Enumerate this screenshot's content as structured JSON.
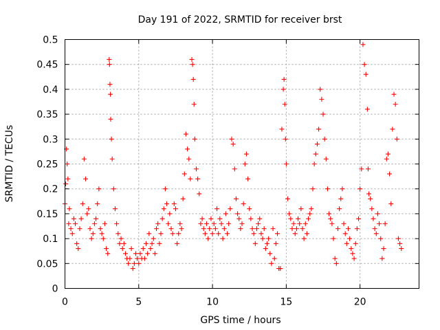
{
  "chart_data": {
    "type": "scatter",
    "title": "Day 191 of 2022, SRMTID for receiver brst",
    "xlabel": "GPS time / hours",
    "ylabel": "SRMTID / TECUs",
    "xlim": [
      0,
      24
    ],
    "ylim": [
      0,
      0.5
    ],
    "xticks": [
      0,
      5,
      10,
      15,
      20
    ],
    "xtick_labels": [
      "0",
      "5",
      "10",
      "15",
      "20"
    ],
    "yticks": [
      0,
      0.05,
      0.1,
      0.15,
      0.2,
      0.25,
      0.3,
      0.35,
      0.4,
      0.45,
      0.5
    ],
    "ytick_labels": [
      "0",
      "0.05",
      "0.1",
      "0.15",
      "0.2",
      "0.25",
      "0.3",
      "0.35",
      "0.4",
      "0.45",
      "0.5"
    ],
    "grid": true,
    "legend": "none",
    "marker": "plus",
    "color": "#ff0000",
    "series": [
      {
        "name": "SRMTID",
        "x": [
          0.0,
          0.05,
          0.1,
          0.15,
          0.2,
          0.25,
          0.3,
          0.4,
          0.5,
          0.6,
          0.7,
          0.8,
          0.9,
          1.0,
          1.1,
          1.2,
          1.3,
          1.4,
          1.5,
          1.6,
          1.7,
          1.8,
          1.9,
          2.0,
          2.1,
          2.2,
          2.3,
          2.4,
          2.5,
          2.6,
          2.7,
          2.8,
          2.9,
          3.0,
          3.02,
          3.05,
          3.08,
          3.1,
          3.15,
          3.2,
          3.3,
          3.4,
          3.5,
          3.6,
          3.7,
          3.8,
          3.9,
          4.0,
          4.1,
          4.2,
          4.3,
          4.4,
          4.5,
          4.6,
          4.7,
          4.8,
          4.9,
          5.0,
          5.1,
          5.2,
          5.3,
          5.4,
          5.5,
          5.6,
          5.7,
          5.8,
          5.9,
          6.0,
          6.1,
          6.2,
          6.3,
          6.4,
          6.5,
          6.6,
          6.7,
          6.8,
          6.9,
          7.0,
          7.1,
          7.2,
          7.3,
          7.4,
          7.5,
          7.6,
          7.7,
          7.8,
          7.9,
          8.0,
          8.1,
          8.2,
          8.3,
          8.4,
          8.5,
          8.6,
          8.65,
          8.7,
          8.75,
          8.8,
          8.9,
          9.0,
          9.1,
          9.2,
          9.3,
          9.4,
          9.5,
          9.6,
          9.7,
          9.8,
          9.9,
          10.0,
          10.1,
          10.2,
          10.3,
          10.4,
          10.5,
          10.6,
          10.7,
          10.8,
          10.9,
          11.0,
          11.1,
          11.2,
          11.3,
          11.4,
          11.5,
          11.6,
          11.7,
          11.8,
          11.9,
          12.0,
          12.1,
          12.2,
          12.3,
          12.4,
          12.5,
          12.6,
          12.7,
          12.8,
          12.9,
          13.0,
          13.1,
          13.2,
          13.3,
          13.4,
          13.5,
          13.6,
          13.7,
          13.8,
          13.9,
          14.0,
          14.1,
          14.2,
          14.3,
          14.4,
          14.5,
          14.6,
          14.7,
          14.8,
          14.85,
          14.9,
          14.95,
          15.0,
          15.1,
          15.2,
          15.3,
          15.4,
          15.5,
          15.6,
          15.7,
          15.8,
          15.9,
          16.0,
          16.1,
          16.2,
          16.3,
          16.4,
          16.5,
          16.6,
          16.7,
          16.8,
          16.9,
          17.0,
          17.1,
          17.2,
          17.3,
          17.4,
          17.5,
          17.6,
          17.7,
          17.8,
          17.9,
          18.0,
          18.1,
          18.2,
          18.3,
          18.4,
          18.5,
          18.6,
          18.7,
          18.8,
          18.9,
          19.0,
          19.1,
          19.2,
          19.3,
          19.4,
          19.5,
          19.6,
          19.7,
          19.8,
          19.9,
          20.0,
          20.1,
          20.2,
          20.3,
          20.4,
          20.5,
          20.55,
          20.6,
          20.7,
          20.8,
          20.9,
          21.0,
          21.1,
          21.2,
          21.3,
          21.4,
          21.5,
          21.6,
          21.7,
          21.8,
          21.9,
          22.0,
          22.1,
          22.2,
          22.3,
          22.4,
          22.5,
          22.6,
          22.7,
          22.8
        ],
        "y": [
          0.17,
          0.21,
          0.28,
          0.25,
          0.22,
          0.13,
          0.16,
          0.12,
          0.11,
          0.14,
          0.13,
          0.09,
          0.08,
          0.12,
          0.14,
          0.17,
          0.26,
          0.22,
          0.15,
          0.16,
          0.12,
          0.1,
          0.11,
          0.13,
          0.14,
          0.17,
          0.2,
          0.12,
          0.11,
          0.1,
          0.13,
          0.08,
          0.07,
          0.46,
          0.45,
          0.41,
          0.39,
          0.34,
          0.3,
          0.26,
          0.2,
          0.16,
          0.13,
          0.11,
          0.09,
          0.1,
          0.08,
          0.09,
          0.07,
          0.06,
          0.05,
          0.06,
          0.08,
          0.04,
          0.05,
          0.07,
          0.06,
          0.05,
          0.07,
          0.06,
          0.08,
          0.06,
          0.09,
          0.07,
          0.11,
          0.08,
          0.09,
          0.1,
          0.07,
          0.12,
          0.13,
          0.09,
          0.11,
          0.14,
          0.16,
          0.2,
          0.17,
          0.13,
          0.15,
          0.12,
          0.11,
          0.17,
          0.16,
          0.09,
          0.11,
          0.13,
          0.12,
          0.18,
          0.23,
          0.31,
          0.28,
          0.26,
          0.22,
          0.46,
          0.45,
          0.42,
          0.37,
          0.3,
          0.24,
          0.22,
          0.19,
          0.13,
          0.14,
          0.12,
          0.11,
          0.13,
          0.1,
          0.12,
          0.14,
          0.11,
          0.13,
          0.12,
          0.16,
          0.11,
          0.14,
          0.13,
          0.1,
          0.12,
          0.15,
          0.11,
          0.13,
          0.16,
          0.3,
          0.29,
          0.24,
          0.18,
          0.15,
          0.14,
          0.12,
          0.13,
          0.17,
          0.25,
          0.27,
          0.22,
          0.16,
          0.14,
          0.12,
          0.11,
          0.09,
          0.12,
          0.13,
          0.14,
          0.11,
          0.1,
          0.12,
          0.08,
          0.09,
          0.1,
          0.07,
          0.05,
          0.12,
          0.06,
          0.09,
          0.11,
          0.04,
          0.04,
          0.32,
          0.4,
          0.42,
          0.37,
          0.3,
          0.25,
          0.18,
          0.15,
          0.14,
          0.12,
          0.13,
          0.11,
          0.12,
          0.14,
          0.13,
          0.16,
          0.12,
          0.1,
          0.13,
          0.11,
          0.14,
          0.15,
          0.16,
          0.2,
          0.25,
          0.27,
          0.29,
          0.32,
          0.4,
          0.38,
          0.35,
          0.3,
          0.26,
          0.2,
          0.15,
          0.14,
          0.13,
          0.1,
          0.06,
          0.05,
          0.12,
          0.16,
          0.18,
          0.2,
          0.13,
          0.11,
          0.09,
          0.12,
          0.1,
          0.08,
          0.07,
          0.06,
          0.09,
          0.12,
          0.14,
          0.2,
          0.24,
          0.49,
          0.45,
          0.43,
          0.36,
          0.24,
          0.19,
          0.18,
          0.16,
          0.14,
          0.12,
          0.11,
          0.15,
          0.13,
          0.1,
          0.06,
          0.08,
          0.13,
          0.26,
          0.27,
          0.23,
          0.17,
          0.32,
          0.39,
          0.37,
          0.3,
          0.1,
          0.09,
          0.08
        ]
      }
    ]
  }
}
